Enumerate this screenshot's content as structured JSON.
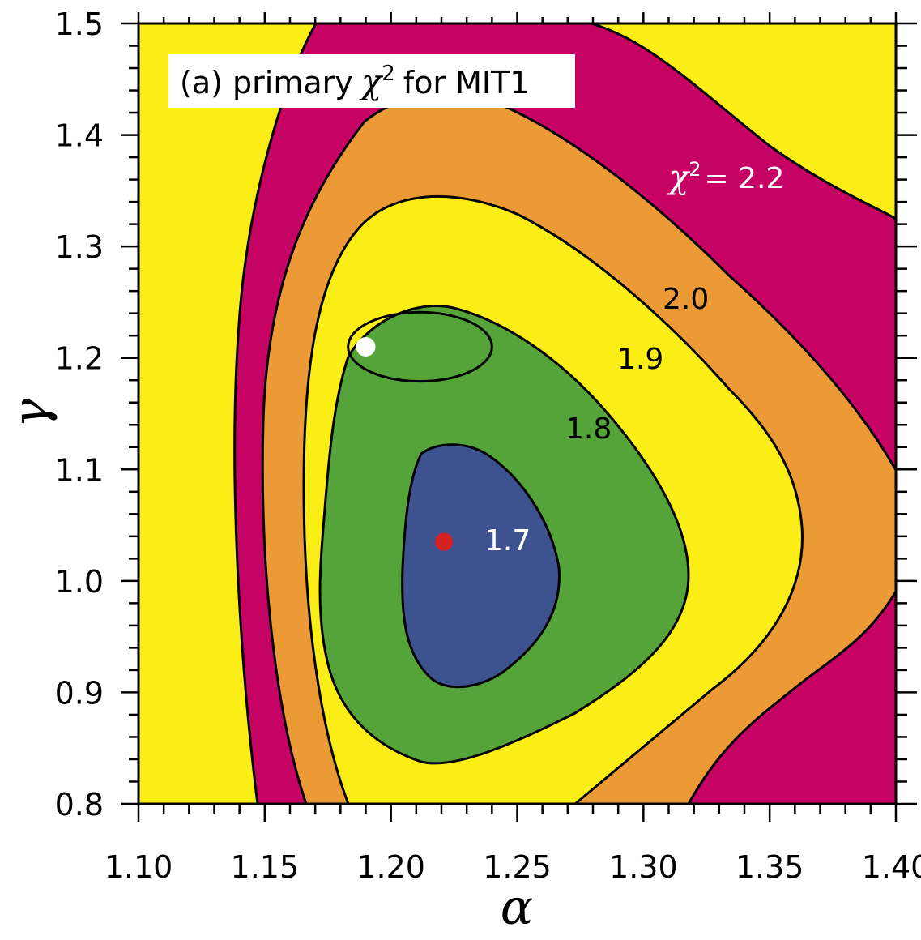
{
  "chart_data": {
    "type": "contour",
    "title": "(a) primary",
    "title_symbol": "χ",
    "title_superscript": "2",
    "title_suffix": "for MIT1",
    "xlabel": "α",
    "ylabel": "γ",
    "xlim": [
      1.1,
      1.4
    ],
    "ylim": [
      0.8,
      1.5
    ],
    "x_ticks": [
      "1.10",
      "1.15",
      "1.20",
      "1.25",
      "1.30",
      "1.35",
      "1.40"
    ],
    "y_ticks": [
      "0.8",
      "0.9",
      "1.0",
      "1.1",
      "1.2",
      "1.3",
      "1.4",
      "1.5"
    ],
    "levels": [
      {
        "value": 1.7,
        "label": "1.7",
        "color": "#3e5290"
      },
      {
        "value": 1.8,
        "label": "1.8",
        "color": "#55a43a"
      },
      {
        "value": 1.9,
        "label": "1.9",
        "color": "#fbee16"
      },
      {
        "value": 2.0,
        "label": "2.0",
        "color": "#ec9a36"
      },
      {
        "value": 2.2,
        "label": "2.2",
        "color": "#c70265"
      }
    ],
    "background_color": "#fbee16",
    "annotation_22": {
      "symbol": "χ",
      "sup": "2",
      "text": "= 2.2",
      "color": "#ffffff"
    },
    "markers": [
      {
        "name": "best-fit-minimum",
        "alpha": 1.221,
        "gamma": 1.035,
        "color": "#d42020"
      },
      {
        "name": "reference-point",
        "alpha": 1.19,
        "gamma": 1.21,
        "color": "#ffffff"
      }
    ],
    "secondary_ellipse": {
      "alpha_center": 1.2115,
      "gamma_center": 1.21,
      "alpha_halfwidth": 0.0285,
      "gamma_halfwidth": 0.031
    }
  }
}
